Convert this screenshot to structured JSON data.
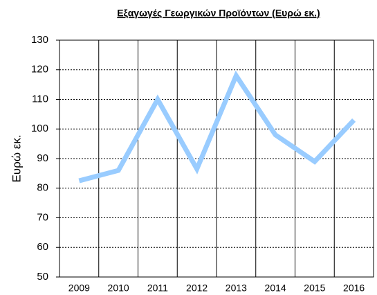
{
  "chart_data": {
    "type": "line",
    "title": "Εξαγωγές Γεωργικών Προϊόντων (Ευρώ εκ.)",
    "y_label": "Ευρώ εκ.",
    "categories": [
      "2009",
      "2010",
      "2011",
      "2012",
      "2013",
      "2014",
      "2015",
      "2016"
    ],
    "series": [
      {
        "name": null,
        "color": "#99ccff",
        "values": [
          82.5,
          86,
          110,
          86.5,
          118,
          98,
          89,
          103
        ]
      }
    ],
    "ylim": [
      50,
      130
    ],
    "yticks": [
      50,
      60,
      70,
      80,
      90,
      100,
      110,
      120,
      130
    ],
    "grid": true
  }
}
